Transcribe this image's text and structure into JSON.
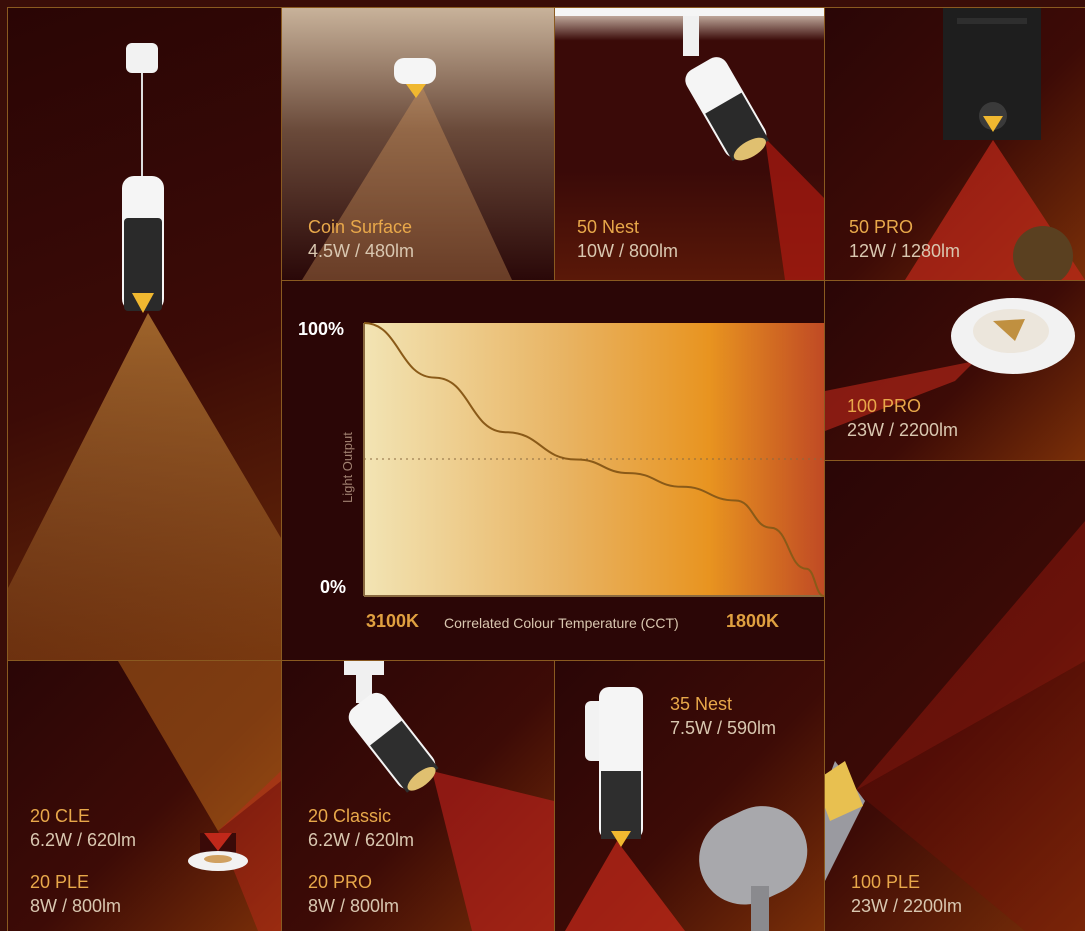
{
  "products": {
    "coin_surface": {
      "name": "Coin Surface",
      "spec": "4.5W / 480lm"
    },
    "nest_50": {
      "name": "50 Nest",
      "spec": "10W / 800lm"
    },
    "pro_50": {
      "name": "50 PRO",
      "spec": "12W / 1280lm"
    },
    "pro_100": {
      "name": "100 PRO",
      "spec": "23W / 2200lm"
    },
    "cle_20": {
      "name": "20 CLE",
      "spec": "6.2W / 620lm"
    },
    "ple_20": {
      "name": "20 PLE",
      "spec": "8W / 800lm"
    },
    "classic_20": {
      "name": "20 Classic",
      "spec": "6.2W / 620lm"
    },
    "pro_20": {
      "name": "20 PRO",
      "spec": "8W / 800lm"
    },
    "nest_35": {
      "name": "35 Nest",
      "spec": "7.5W / 590lm"
    },
    "ple_100": {
      "name": "100 PLE",
      "spec": "23W / 2200lm"
    }
  },
  "chart": {
    "y_top": "100%",
    "y_bottom": "0%",
    "y_axis_label": "Light Output",
    "x_left": "3100K",
    "x_right": "1800K",
    "x_axis_label": "Correlated Colour Temperature (CCT)"
  },
  "chart_data": {
    "type": "line",
    "x": [
      3100,
      2900,
      2700,
      2500,
      2350,
      2200,
      2050,
      1950,
      1850,
      1800
    ],
    "series": [
      {
        "values": [
          100,
          80,
          60,
          50,
          45,
          40,
          35,
          25,
          10,
          0
        ]
      }
    ],
    "xlim": [
      3100,
      1800
    ],
    "ylim": [
      0,
      100
    ],
    "grid": false
  }
}
